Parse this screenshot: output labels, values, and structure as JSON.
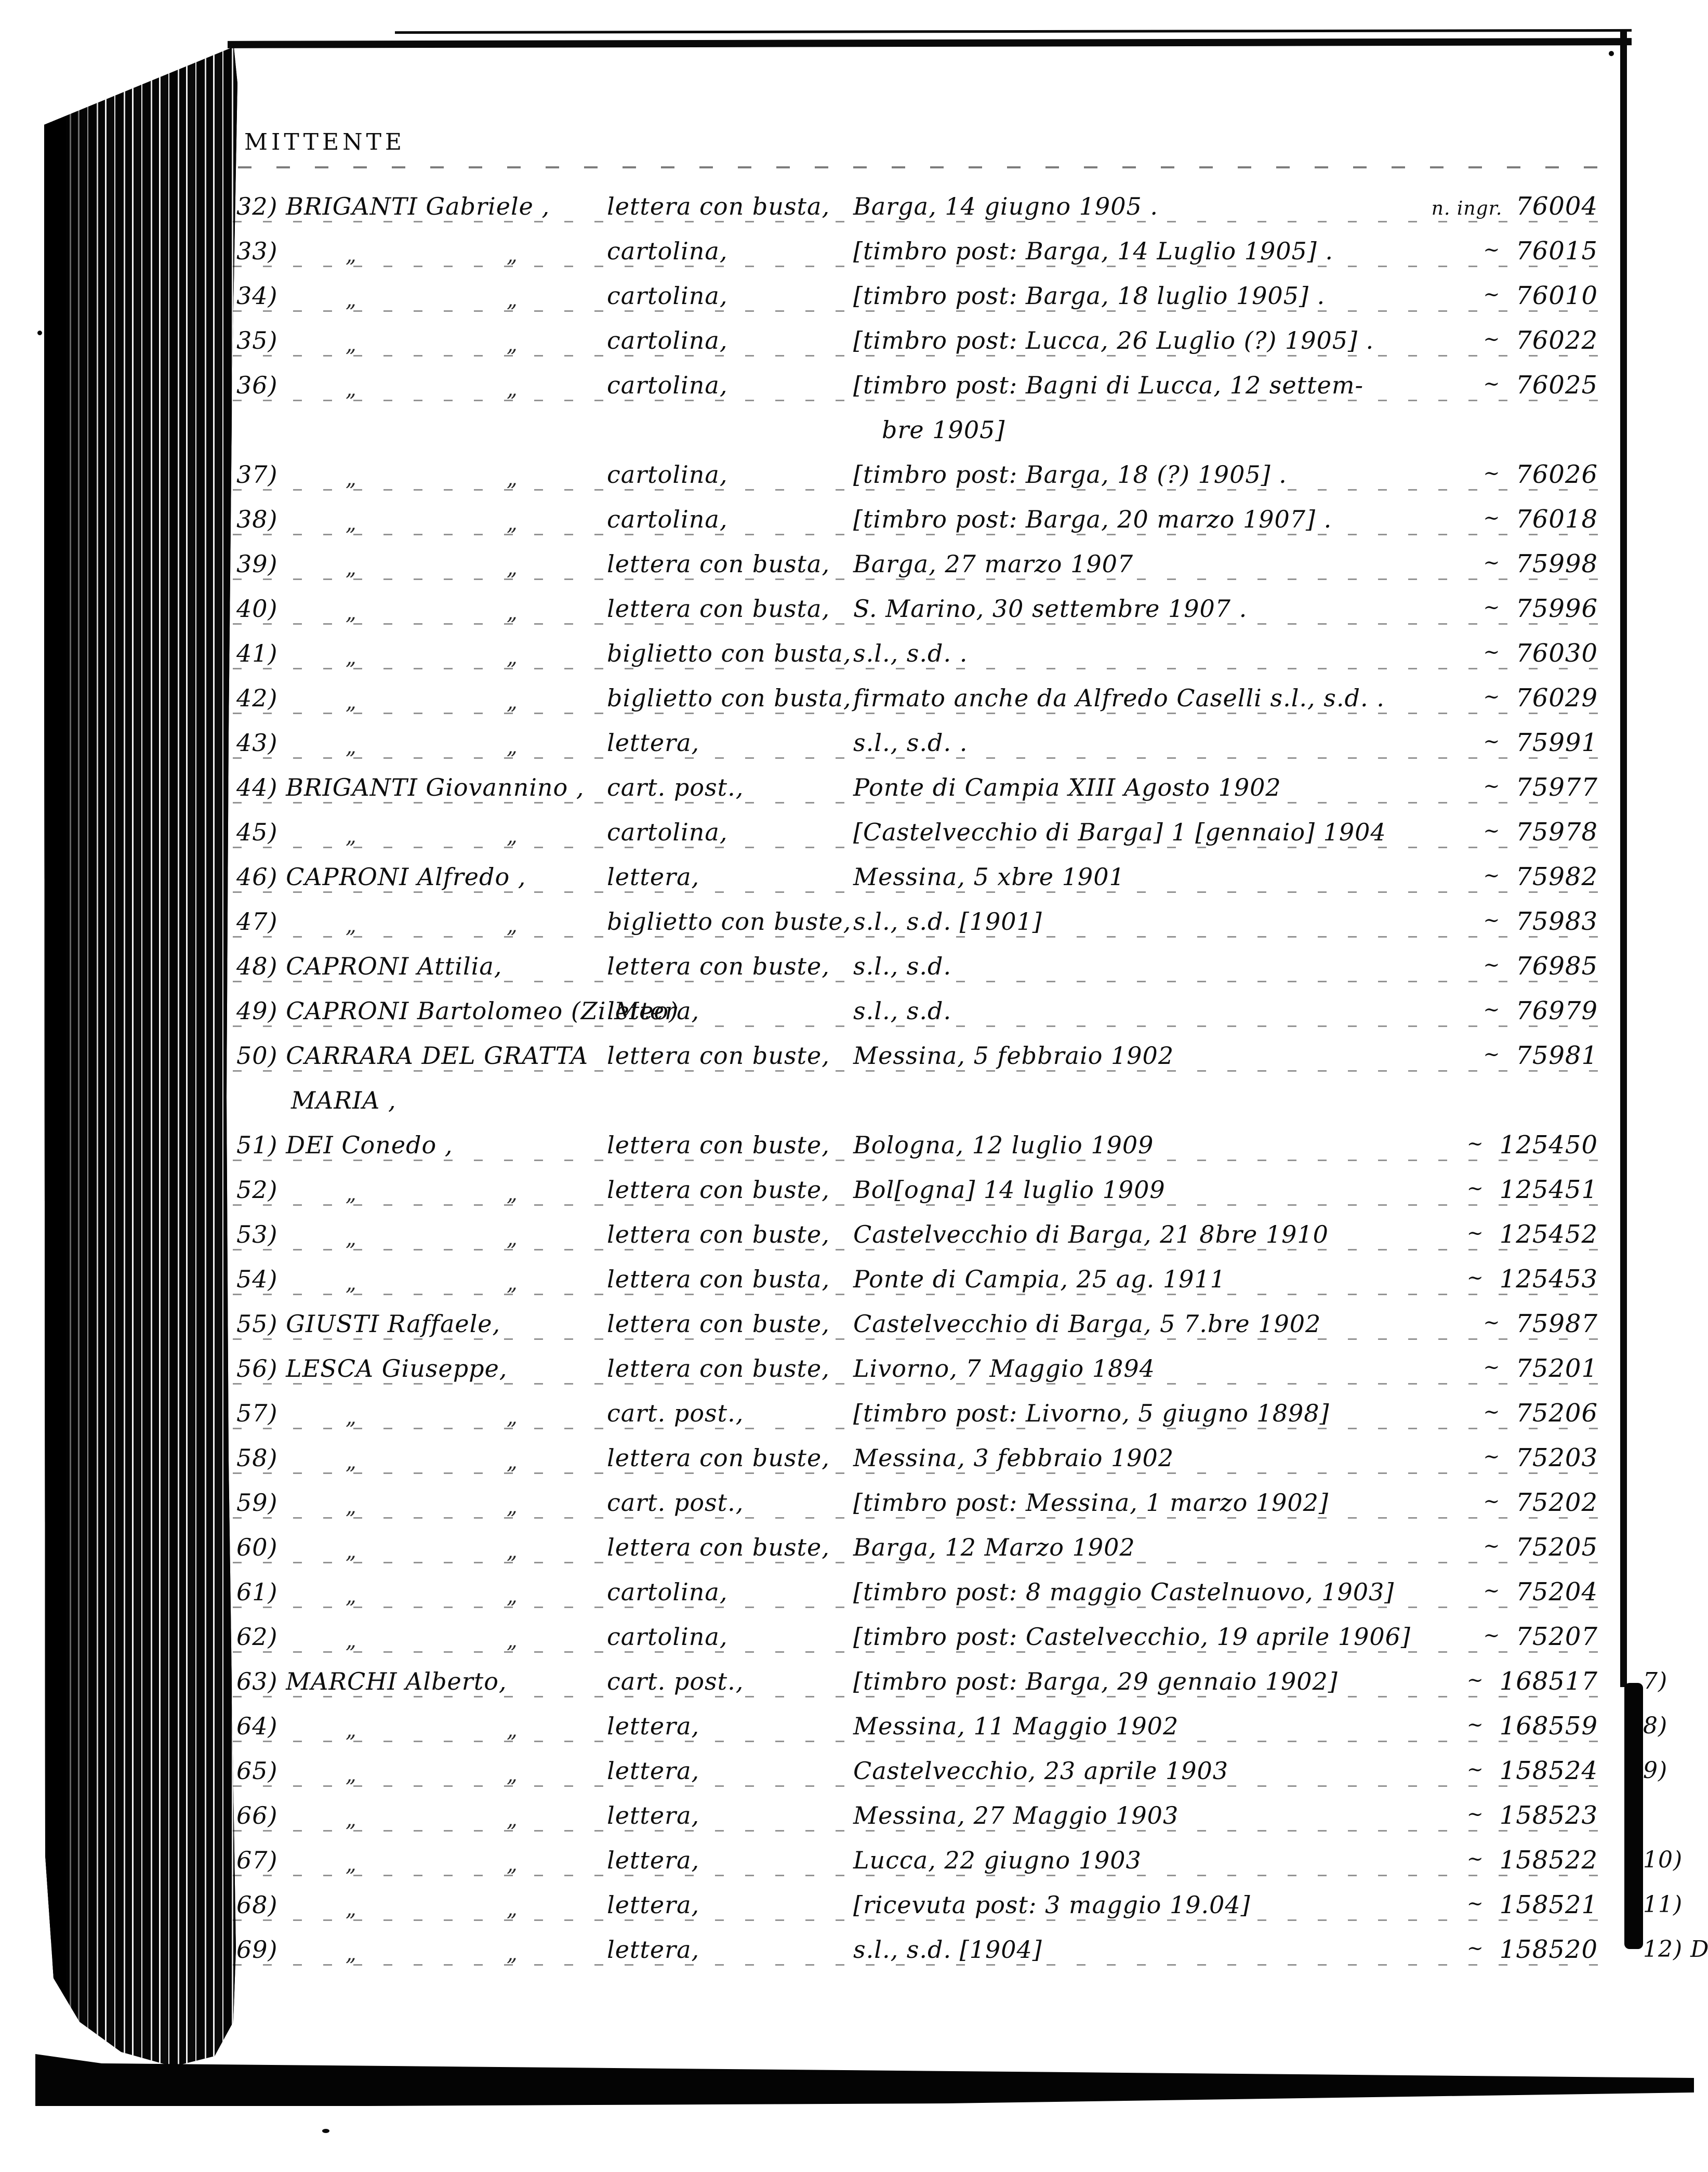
{
  "document": {
    "header": {
      "sender_label": "MITTENTE"
    },
    "accession_label": "n. ingr.",
    "tick_glyph": "~",
    "ditto_glyph": "„",
    "rows": [
      {
        "num": "32)",
        "name": "BRIGANTI Gabriele ,",
        "type": "lettera con busta,",
        "place": "Barga, 14 giugno 1905 .",
        "inv": "76004",
        "ingr": true
      },
      {
        "num": "33)",
        "ditto": true,
        "type": "cartolina,",
        "place": "[timbro post: Barga, 14 Luglio 1905] .",
        "inv": "76015"
      },
      {
        "num": "34)",
        "ditto": true,
        "type": "cartolina,",
        "place": "[timbro post: Barga, 18 luglio 1905] .",
        "inv": "76010"
      },
      {
        "num": "35)",
        "ditto": true,
        "type": "cartolina,",
        "place": "[timbro post: Lucca, 26 Luglio (?) 1905] .",
        "inv": "76022"
      },
      {
        "num": "36)",
        "ditto": true,
        "type": "cartolina,",
        "place": "[timbro post: Bagni di Lucca, 12 settem-",
        "inv": "76025"
      },
      {
        "cont": true,
        "place": "bre 1905]"
      },
      {
        "num": "37)",
        "ditto": true,
        "type": "cartolina,",
        "place": "[timbro post: Barga, 18 (?) 1905] .",
        "inv": "76026"
      },
      {
        "num": "38)",
        "ditto": true,
        "type": "cartolina,",
        "place": "[timbro post: Barga, 20 marzo 1907] .",
        "inv": "76018"
      },
      {
        "num": "39)",
        "ditto": true,
        "type": "lettera con busta,",
        "place": "Barga, 27 marzo 1907",
        "inv": "75998"
      },
      {
        "num": "40)",
        "ditto": true,
        "type": "lettera con busta,",
        "place": "S. Marino, 30 settembre 1907 .",
        "inv": "75996"
      },
      {
        "num": "41)",
        "ditto": true,
        "type": "biglietto con busta,",
        "place": "s.l., s.d. .",
        "inv": "76030"
      },
      {
        "num": "42)",
        "ditto": true,
        "type": "biglietto con busta,",
        "place": "firmato anche da Alfredo Caselli s.l., s.d. .",
        "inv": "76029"
      },
      {
        "num": "43)",
        "ditto": true,
        "type": "lettera,",
        "place": "s.l., s.d. .",
        "inv": "75991"
      },
      {
        "num": "44)",
        "name": "BRIGANTI Giovannino ,",
        "type": "cart. post.,",
        "place": "Ponte di Campia XIII Agosto 1902",
        "inv": "75977"
      },
      {
        "num": "45)",
        "ditto": true,
        "type": "cartolina,",
        "place": "[Castelvecchio di Barga] 1 [gennaio] 1904",
        "inv": "75978"
      },
      {
        "num": "46)",
        "name": "CAPRONI Alfredo ,",
        "type": "lettera,",
        "place": "Messina, 5 xbre 1901",
        "inv": "75982"
      },
      {
        "num": "47)",
        "ditto": true,
        "type": "biglietto con buste,",
        "place": "s.l., s.d. [1901]",
        "inv": "75983"
      },
      {
        "num": "48)",
        "name": "CAPRONI Attilia,",
        "type": "lettera con buste,",
        "place": "s.l., s.d.",
        "inv": "76985"
      },
      {
        "num": "49)",
        "name": "CAPRONI Bartolomeo (Zi Meo)",
        "type": "lettera,",
        "place": "s.l., s.d.",
        "inv": "76979"
      },
      {
        "num": "50)",
        "name": "CARRARA DEL GRATTA",
        "type": "lettera con buste,",
        "place": "Messina, 5 febbraio 1902",
        "inv": "75981"
      },
      {
        "cont": true,
        "name": "MARIA ,"
      },
      {
        "num": "51)",
        "name": "DEI Conedo ,",
        "type": "lettera con buste,",
        "place": "Bologna, 12 luglio 1909",
        "inv": "125450"
      },
      {
        "num": "52)",
        "ditto": true,
        "type": "lettera con buste,",
        "place": "Bol[ogna] 14 luglio 1909",
        "inv": "125451"
      },
      {
        "num": "53)",
        "ditto": true,
        "type": "lettera con buste,",
        "place": "Castelvecchio di Barga, 21 8bre 1910",
        "inv": "125452"
      },
      {
        "num": "54)",
        "ditto": true,
        "type": "lettera con busta,",
        "place": "Ponte di Campia, 25 ag. 1911",
        "inv": "125453"
      },
      {
        "num": "55)",
        "name": "GIUSTI Raffaele,",
        "type": "lettera con buste,",
        "place": "Castelvecchio di Barga, 5 7.bre 1902",
        "inv": "75987"
      },
      {
        "num": "56)",
        "name": "LESCA Giuseppe,",
        "type": "lettera con buste,",
        "place": "Livorno, 7 Maggio 1894",
        "inv": "75201"
      },
      {
        "num": "57)",
        "ditto": true,
        "type": "cart. post.,",
        "place": "[timbro post: Livorno, 5 giugno 1898]",
        "inv": "75206"
      },
      {
        "num": "58)",
        "ditto": true,
        "type": "lettera con buste,",
        "place": "Messina, 3 febbraio 1902",
        "inv": "75203"
      },
      {
        "num": "59)",
        "ditto": true,
        "type": "cart. post.,",
        "place": "[timbro post: Messina, 1 marzo 1902]",
        "inv": "75202"
      },
      {
        "num": "60)",
        "ditto": true,
        "type": "lettera con buste,",
        "place": "Barga, 12 Marzo 1902",
        "inv": "75205"
      },
      {
        "num": "61)",
        "ditto": true,
        "type": "cartolina,",
        "place": "[timbro post: 8 maggio Castelnuovo, 1903]",
        "inv": "75204"
      },
      {
        "num": "62)",
        "ditto": true,
        "type": "cartolina,",
        "place": "[timbro post: Castelvecchio, 19 aprile 1906]",
        "inv": "75207"
      },
      {
        "num": "63)",
        "name": "MARCHI Alberto,",
        "type": "cart. post.,",
        "place": "[timbro post: Barga, 29 gennaio 1902]",
        "inv": "168517",
        "margin": "7)"
      },
      {
        "num": "64)",
        "ditto": true,
        "type": "lettera,",
        "place": "Messina, 11 Maggio 1902",
        "inv": "168559",
        "margin": "8)"
      },
      {
        "num": "65)",
        "ditto": true,
        "type": "lettera,",
        "place": "Castelvecchio, 23 aprile 1903",
        "inv": "158524",
        "margin": "9)"
      },
      {
        "num": "66)",
        "ditto": true,
        "type": "lettera,",
        "place": "Messina, 27 Maggio 1903",
        "inv": "158523"
      },
      {
        "num": "67)",
        "ditto": true,
        "type": "lettera,",
        "place": "Lucca, 22 giugno 1903",
        "inv": "158522",
        "margin": "10)"
      },
      {
        "num": "68)",
        "ditto": true,
        "type": "lettera,",
        "place": "[ricevuta post: 3 maggio 19.04]",
        "inv": "158521",
        "margin": "11)"
      },
      {
        "num": "69)",
        "ditto": true,
        "type": "lettera,",
        "place": "s.l., s.d. [1904]",
        "inv": "158520",
        "margin": "12) D"
      }
    ]
  }
}
